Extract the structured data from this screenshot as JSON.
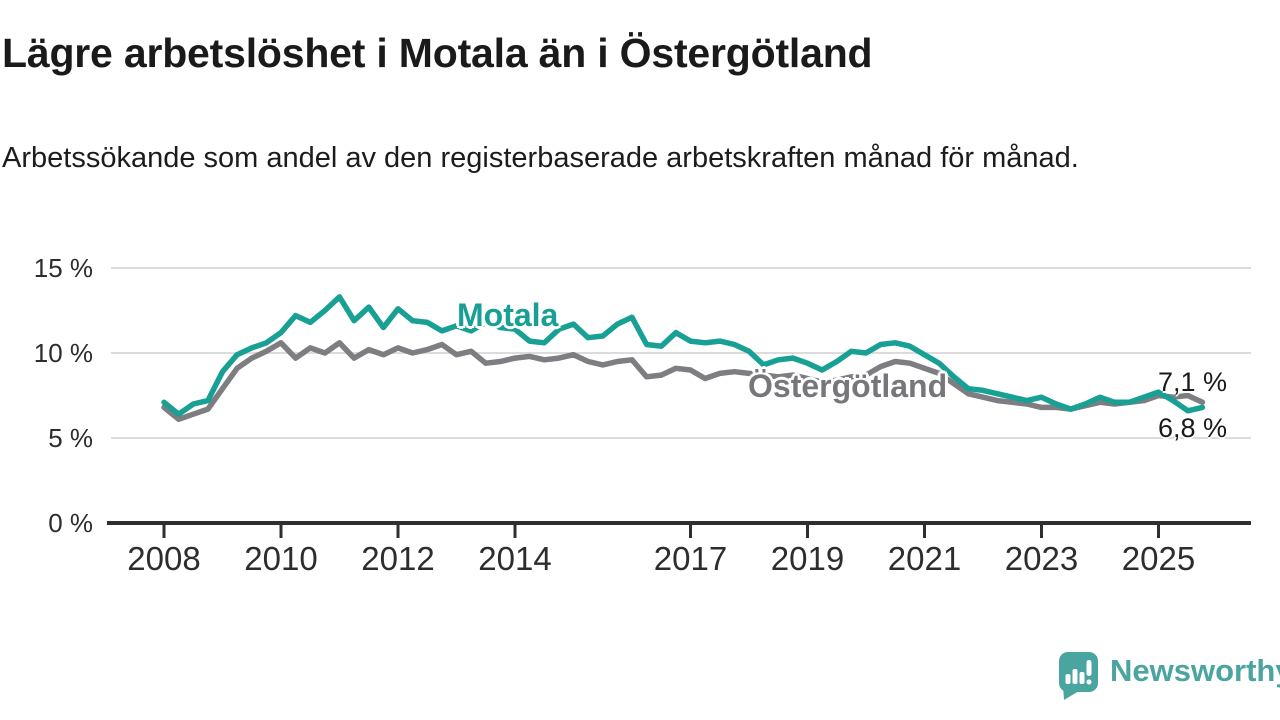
{
  "chart_data": {
    "type": "line",
    "title": "Lägre arbetslöshet i Motala än i Östergötland",
    "subtitle": "Arbetssökande som andel av den registerbaserade arbetskraften månad för månad.",
    "unit": "%",
    "grid": "horizontal",
    "legend_position": "inline-labels",
    "ylim": [
      0,
      15.5
    ],
    "xlim": [
      2007.9,
      2025.9
    ],
    "y_ticks": [
      {
        "value": 15,
        "label": "15 %"
      },
      {
        "value": 10,
        "label": "10 %"
      },
      {
        "value": 5,
        "label": "5 %"
      },
      {
        "value": 0,
        "label": "0 %"
      }
    ],
    "x_ticks": [
      {
        "value": 2008,
        "label": "2008"
      },
      {
        "value": 2010,
        "label": "2010"
      },
      {
        "value": 2012,
        "label": "2012"
      },
      {
        "value": 2014,
        "label": "2014"
      },
      {
        "value": 2017,
        "label": "2017"
      },
      {
        "value": 2019,
        "label": "2019"
      },
      {
        "value": 2021,
        "label": "2021"
      },
      {
        "value": 2023,
        "label": "2023"
      },
      {
        "value": 2025,
        "label": "2025"
      }
    ],
    "x": [
      2008.0,
      2008.25,
      2008.5,
      2008.75,
      2009.0,
      2009.25,
      2009.5,
      2009.75,
      2010.0,
      2010.25,
      2010.5,
      2010.75,
      2011.0,
      2011.25,
      2011.5,
      2011.75,
      2012.0,
      2012.25,
      2012.5,
      2012.75,
      2013.0,
      2013.25,
      2013.5,
      2013.75,
      2014.0,
      2014.25,
      2014.5,
      2014.75,
      2015.0,
      2015.25,
      2015.5,
      2015.75,
      2016.0,
      2016.25,
      2016.5,
      2016.75,
      2017.0,
      2017.25,
      2017.5,
      2017.75,
      2018.0,
      2018.25,
      2018.5,
      2018.75,
      2019.0,
      2019.25,
      2019.5,
      2019.75,
      2020.0,
      2020.25,
      2020.5,
      2020.75,
      2021.0,
      2021.25,
      2021.5,
      2021.75,
      2022.0,
      2022.25,
      2022.5,
      2022.75,
      2023.0,
      2023.25,
      2023.5,
      2023.75,
      2024.0,
      2024.25,
      2024.5,
      2024.75,
      2025.0,
      2025.25,
      2025.5,
      2025.75
    ],
    "series": [
      {
        "name": "Motala",
        "color": "#18a094",
        "latest_value_label": "6,8 %",
        "values": [
          7.1,
          6.4,
          7.0,
          7.2,
          8.9,
          9.9,
          10.3,
          10.6,
          11.2,
          12.2,
          11.8,
          12.5,
          13.3,
          11.9,
          12.7,
          11.5,
          12.6,
          11.9,
          11.8,
          11.3,
          11.6,
          11.3,
          11.8,
          11.5,
          11.4,
          10.7,
          10.6,
          11.4,
          11.7,
          10.9,
          11.0,
          11.7,
          12.1,
          10.5,
          10.4,
          11.2,
          10.7,
          10.6,
          10.7,
          10.5,
          10.1,
          9.3,
          9.6,
          9.7,
          9.4,
          9.0,
          9.5,
          10.1,
          10.0,
          10.5,
          10.6,
          10.4,
          9.9,
          9.4,
          8.6,
          7.9,
          7.8,
          7.6,
          7.4,
          7.2,
          7.4,
          7.0,
          6.7,
          7.0,
          7.4,
          7.1,
          7.1,
          7.4,
          7.7,
          7.2,
          6.6,
          6.8
        ]
      },
      {
        "name": "Östergötland",
        "color": "#7e7d82",
        "latest_value_label": "7,1 %",
        "values": [
          6.8,
          6.1,
          6.4,
          6.7,
          7.9,
          9.1,
          9.7,
          10.1,
          10.6,
          9.7,
          10.3,
          10.0,
          10.6,
          9.7,
          10.2,
          9.9,
          10.3,
          10.0,
          10.2,
          10.5,
          9.9,
          10.1,
          9.4,
          9.5,
          9.7,
          9.8,
          9.6,
          9.7,
          9.9,
          9.5,
          9.3,
          9.5,
          9.6,
          8.6,
          8.7,
          9.1,
          9.0,
          8.5,
          8.8,
          8.9,
          8.8,
          8.7,
          8.6,
          8.7,
          8.5,
          8.3,
          8.4,
          8.6,
          8.7,
          9.2,
          9.5,
          9.4,
          9.1,
          8.8,
          8.2,
          7.6,
          7.4,
          7.2,
          7.1,
          7.0,
          6.8,
          6.8,
          6.7,
          6.9,
          7.1,
          7.0,
          7.1,
          7.2,
          7.5,
          7.4,
          7.5,
          7.1
        ]
      }
    ],
    "end_labels": {
      "upper": {
        "series": "Östergötland",
        "text": "7,1 %"
      },
      "lower": {
        "series": "Motala",
        "text": "6,8 %"
      }
    }
  },
  "footer": {
    "brand": "Newsworthy",
    "logo_icon": "bar-chart-speech-bubble-icon",
    "brand_color": "#4aa5a1"
  },
  "style_colors": {
    "motala_line": "#18a094",
    "ostergotland_line": "#7e7d82",
    "gridline": "#dcdcdc",
    "axis": "#2f2f2f",
    "text": "#1a1a1a"
  }
}
